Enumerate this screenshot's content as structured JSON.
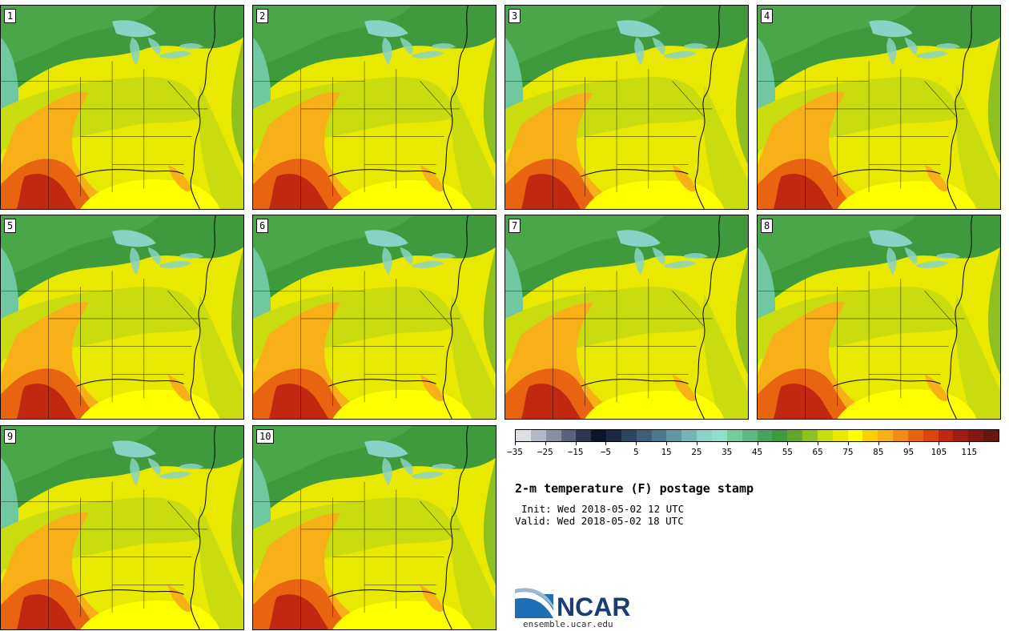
{
  "members": [
    "1",
    "2",
    "3",
    "4",
    "5",
    "6",
    "7",
    "8",
    "9",
    "10"
  ],
  "colorbar": {
    "colors": [
      "#dcdfe4",
      "#b4b8c6",
      "#8a8fa4",
      "#5a627c",
      "#2c3650",
      "#0c1428",
      "#1a2842",
      "#2c4660",
      "#3c6078",
      "#4c7a8c",
      "#5e96a2",
      "#74b6b6",
      "#88d2c6",
      "#8fe0cc",
      "#74cc9e",
      "#5ab884",
      "#46a45c",
      "#3e9a3c",
      "#5ea82c",
      "#90c020",
      "#c8dc10",
      "#e8e800",
      "#ffff00",
      "#fcd000",
      "#f8b018",
      "#f08c10",
      "#e86410",
      "#dc4410",
      "#c02810",
      "#a01c10",
      "#841810",
      "#6a1610"
    ],
    "tick_labels": [
      "−35",
      "−25",
      "−15",
      "−5",
      "5",
      "15",
      "25",
      "35",
      "45",
      "55",
      "65",
      "75",
      "85",
      "95",
      "105",
      "115"
    ]
  },
  "title": "2-m temperature (F) postage stamp",
  "init": "Init: Wed 2018-05-02 12 UTC",
  "valid": "Valid: Wed 2018-05-02 18 UTC",
  "logo": {
    "text": "NCAR",
    "url": "ensemble.ucar.edu"
  },
  "map_colors": {
    "cold": "#3e9a3c",
    "cool": "#5ea82c",
    "mild": "#90c020",
    "warm": "#c8dc10",
    "warmer": "#e8e800",
    "hot": "#ffff00",
    "hotter": "#f8b018",
    "very_hot": "#e86410",
    "extreme": "#c02810",
    "lakes": "#88d2c6",
    "ocean": "#c8dc10"
  }
}
